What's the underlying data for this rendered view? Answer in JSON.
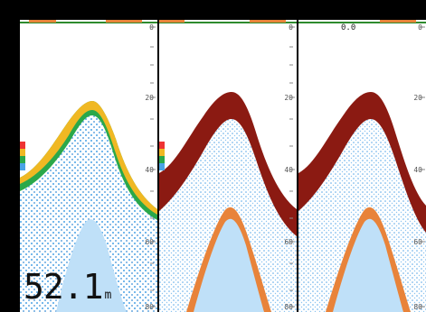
{
  "panels": [
    {
      "name": "panel-1",
      "scale_labels": [
        "0",
        "20",
        "40",
        "60",
        "80"
      ]
    },
    {
      "name": "panel-2",
      "scale_labels": [
        "0",
        "20",
        "40",
        "60",
        "80"
      ]
    },
    {
      "name": "panel-3",
      "scale_labels": [
        "0",
        "20",
        "40",
        "60",
        "80"
      ],
      "offset_label": "0.0"
    }
  ],
  "depth_readout": {
    "value": "52.1",
    "unit": "m"
  },
  "colors": {
    "surface_line": "#2e8b2e",
    "surface_bar": "#e8833a",
    "weak": "#4aa3e6",
    "medium": "#2aa84a",
    "strong": "#f0b823",
    "strongest": "#8b1a12"
  }
}
